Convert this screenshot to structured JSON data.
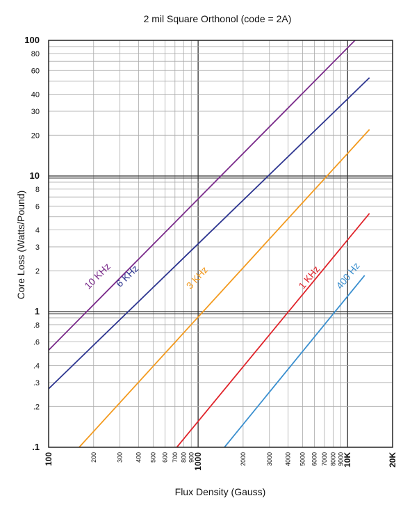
{
  "chart_data": {
    "type": "line",
    "title": "2 mil Square Orthonol (code = 2A)",
    "xlabel": "Flux Density (Gauss)",
    "ylabel": "Core Loss (Watts/Pound)",
    "x_scale": "log",
    "y_scale": "log",
    "xlim": [
      100,
      20000
    ],
    "ylim": [
      0.1,
      100
    ],
    "grid": true,
    "x_ticks": [
      {
        "value": 100,
        "label": "100",
        "major": true
      },
      {
        "value": 200,
        "label": "200",
        "major": false
      },
      {
        "value": 300,
        "label": "300",
        "major": false
      },
      {
        "value": 400,
        "label": "400",
        "major": false
      },
      {
        "value": 500,
        "label": "500",
        "major": false
      },
      {
        "value": 600,
        "label": "600",
        "major": false
      },
      {
        "value": 700,
        "label": "700",
        "major": false
      },
      {
        "value": 800,
        "label": "800",
        "major": false
      },
      {
        "value": 900,
        "label": "900",
        "major": false
      },
      {
        "value": 1000,
        "label": "1000",
        "major": true
      },
      {
        "value": 2000,
        "label": "2000",
        "major": false
      },
      {
        "value": 3000,
        "label": "3000",
        "major": false
      },
      {
        "value": 4000,
        "label": "4000",
        "major": false
      },
      {
        "value": 5000,
        "label": "5000",
        "major": false
      },
      {
        "value": 6000,
        "label": "6000",
        "major": false
      },
      {
        "value": 7000,
        "label": "7000",
        "major": false
      },
      {
        "value": 8000,
        "label": "8000",
        "major": false
      },
      {
        "value": 9000,
        "label": "9000",
        "major": false
      },
      {
        "value": 10000,
        "label": "10K",
        "major": true
      },
      {
        "value": 20000,
        "label": "20K",
        "major": true
      }
    ],
    "y_ticks": [
      {
        "value": 0.1,
        "label": ".1",
        "major": true
      },
      {
        "value": 0.2,
        "label": ".2",
        "major": false
      },
      {
        "value": 0.3,
        "label": ".3",
        "major": false
      },
      {
        "value": 0.4,
        "label": ".4",
        "major": false
      },
      {
        "value": 0.6,
        "label": ".6",
        "major": false
      },
      {
        "value": 0.8,
        "label": ".8",
        "major": false
      },
      {
        "value": 1,
        "label": "1",
        "major": true
      },
      {
        "value": 2,
        "label": "2",
        "major": false
      },
      {
        "value": 3,
        "label": "3",
        "major": false
      },
      {
        "value": 4,
        "label": "4",
        "major": false
      },
      {
        "value": 6,
        "label": "6",
        "major": false
      },
      {
        "value": 8,
        "label": "8",
        "major": false
      },
      {
        "value": 10,
        "label": "10",
        "major": true
      },
      {
        "value": 20,
        "label": "20",
        "major": false
      },
      {
        "value": 30,
        "label": "30",
        "major": false
      },
      {
        "value": 40,
        "label": "40",
        "major": false
      },
      {
        "value": 60,
        "label": "60",
        "major": false
      },
      {
        "value": 80,
        "label": "80",
        "major": false
      },
      {
        "value": 100,
        "label": "100",
        "major": true
      }
    ],
    "series": [
      {
        "name": "10 KHz",
        "color": "#7a2a8a",
        "points": [
          [
            100,
            0.52
          ],
          [
            11200,
            100
          ]
        ],
        "label_at": [
          185,
          1.45
        ]
      },
      {
        "name": "6 KHz",
        "color": "#2d3590",
        "points": [
          [
            100,
            0.27
          ],
          [
            14000,
            53
          ]
        ],
        "label_at": [
          300,
          1.5
        ]
      },
      {
        "name": "3 KHz",
        "color": "#f39a1e",
        "points": [
          [
            160,
            0.1
          ],
          [
            14000,
            22
          ]
        ],
        "label_at": [
          890,
          1.45
        ]
      },
      {
        "name": "1 KHz",
        "color": "#e0232a",
        "points": [
          [
            720,
            0.1
          ],
          [
            14000,
            5.3
          ]
        ],
        "label_at": [
          5050,
          1.45
        ]
      },
      {
        "name": "400 Hz",
        "color": "#3a8fcf",
        "points": [
          [
            1500,
            0.1
          ],
          [
            13000,
            1.85
          ]
        ],
        "label_at": [
          9000,
          1.45
        ]
      }
    ]
  }
}
